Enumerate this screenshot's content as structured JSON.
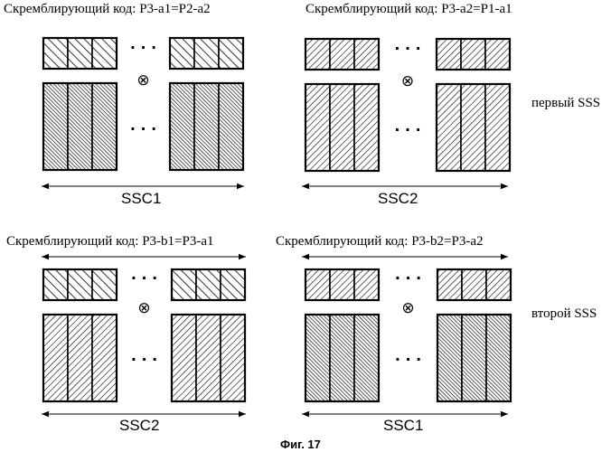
{
  "captions": {
    "top_left": "Скремблирующий код: P3-a1=P2-a2",
    "top_right": "Скремблирующий код: P3-a2=P1-a1",
    "bottom_left": "Скремблирующий код: P3-b1=P3-a1",
    "bottom_right": "Скремблирующий код: P3-b2=P3-a2"
  },
  "side_labels": {
    "first": "первый SSS",
    "second": "второй SSS"
  },
  "span_labels": {
    "top_left": "SSC1",
    "top_right": "SSC2",
    "bottom_left": "SSC2",
    "bottom_right": "SSC1"
  },
  "ellipsis": "· · ·",
  "multiply_symbol": "⊗",
  "figure_caption": "Фиг. 17",
  "patterns": {
    "top_left": {
      "small": "back-hatch",
      "big": "dense-back-hatch"
    },
    "top_right": {
      "small": "forward-hatch",
      "big": "forward-hatch"
    },
    "bottom_left": {
      "small": "back-hatch",
      "big": "forward-hatch"
    },
    "bottom_right": {
      "small": "forward-hatch",
      "big": "dense-back-hatch"
    }
  }
}
